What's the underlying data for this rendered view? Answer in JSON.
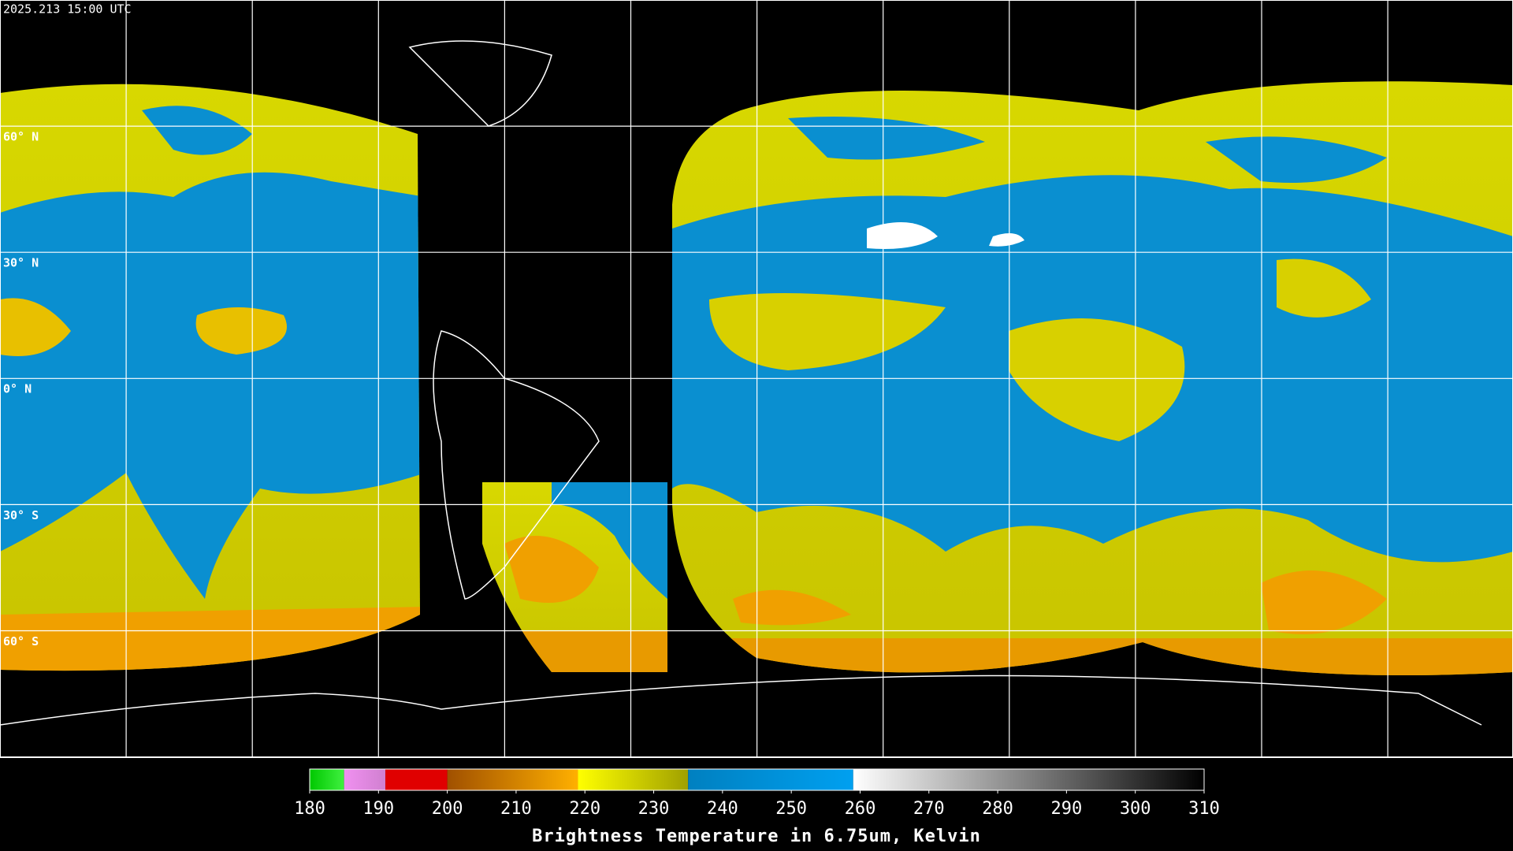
{
  "header": {
    "timestamp": "2025.213 15:00 UTC"
  },
  "map": {
    "lat_labels": [
      "60° N",
      "30° N",
      "0° N",
      "30° S",
      "60° S"
    ]
  },
  "colorbar": {
    "range": [
      180,
      310
    ],
    "ticks": [
      180,
      190,
      200,
      210,
      220,
      230,
      240,
      250,
      260,
      270,
      280,
      290,
      300,
      310
    ],
    "segments": [
      {
        "from": 180,
        "to": 185,
        "colors": [
          "#00c800",
          "#40f040"
        ]
      },
      {
        "from": 185,
        "to": 191,
        "colors": [
          "#f090f0",
          "#d080d0"
        ]
      },
      {
        "from": 191,
        "to": 200,
        "colors": [
          "#e00000",
          "#e00000"
        ]
      },
      {
        "from": 200,
        "to": 219,
        "colors": [
          "#a05000",
          "#ffb000"
        ]
      },
      {
        "from": 219,
        "to": 235,
        "colors": [
          "#ffff00",
          "#a0a000"
        ]
      },
      {
        "from": 235,
        "to": 259,
        "colors": [
          "#0080c0",
          "#00a0f0"
        ]
      },
      {
        "from": 259,
        "to": 310,
        "colors": [
          "#ffffff",
          "#000000"
        ]
      }
    ],
    "label": "Brightness Temperature in 6.75um, Kelvin"
  }
}
